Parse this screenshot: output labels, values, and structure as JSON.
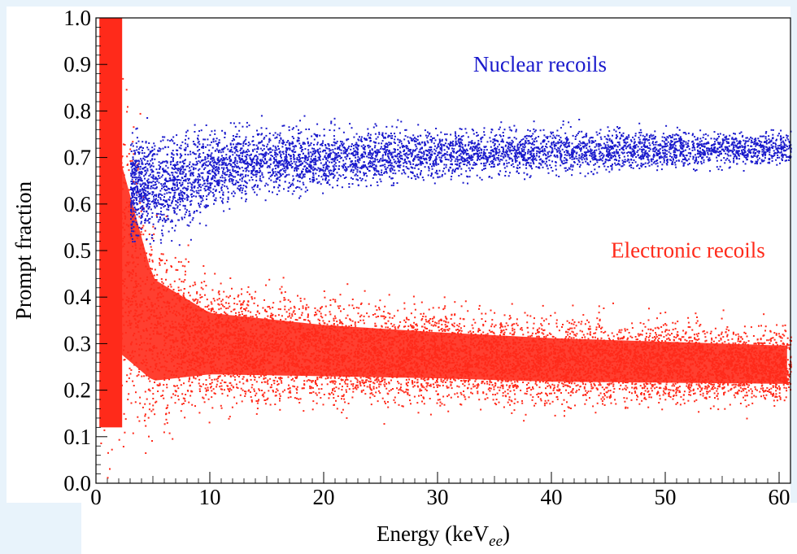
{
  "chart_data": {
    "type": "scatter",
    "xlabel_main": "Energy (keV",
    "xlabel_sub": "ee",
    "xlabel_close": ")",
    "ylabel": "Prompt fraction",
    "xlim": [
      0,
      61
    ],
    "ylim": [
      0.0,
      1.0
    ],
    "x_ticks": [
      "0",
      "10",
      "20",
      "30",
      "40",
      "50",
      "60"
    ],
    "y_ticks": [
      "0.0",
      "0.1",
      "0.2",
      "0.3",
      "0.4",
      "0.5",
      "0.6",
      "0.7",
      "0.8",
      "0.9",
      "1.0"
    ],
    "grid": false,
    "series": [
      {
        "name": "Electronic recoils",
        "color": "#ff2a1a",
        "description_points": [
          {
            "x": 1,
            "y_center": 0.55,
            "y_spread": 0.45
          },
          {
            "x": 5,
            "y_center": 0.33,
            "y_spread": 0.2
          },
          {
            "x": 10,
            "y_center": 0.3,
            "y_spread": 0.12
          },
          {
            "x": 20,
            "y_center": 0.285,
            "y_spread": 0.1
          },
          {
            "x": 30,
            "y_center": 0.275,
            "y_spread": 0.09
          },
          {
            "x": 40,
            "y_center": 0.265,
            "y_spread": 0.085
          },
          {
            "x": 50,
            "y_center": 0.26,
            "y_spread": 0.08
          },
          {
            "x": 60,
            "y_center": 0.255,
            "y_spread": 0.075
          }
        ]
      },
      {
        "name": "Nuclear recoils",
        "color": "#1a1acc",
        "description_points": [
          {
            "x": 7,
            "y_center": 0.64,
            "y_spread": 0.1
          },
          {
            "x": 12,
            "y_center": 0.69,
            "y_spread": 0.07
          },
          {
            "x": 20,
            "y_center": 0.7,
            "y_spread": 0.06
          },
          {
            "x": 30,
            "y_center": 0.71,
            "y_spread": 0.05
          },
          {
            "x": 40,
            "y_center": 0.715,
            "y_spread": 0.045
          },
          {
            "x": 50,
            "y_center": 0.72,
            "y_spread": 0.04
          },
          {
            "x": 60,
            "y_center": 0.72,
            "y_spread": 0.035
          }
        ]
      }
    ],
    "annotations": [
      {
        "text": "Nuclear recoils",
        "color": "#1a1acc",
        "x": 39,
        "y": 0.885
      },
      {
        "text": "Electronic recoils",
        "color": "#ff2a1a",
        "x": 52,
        "y": 0.485
      }
    ]
  }
}
